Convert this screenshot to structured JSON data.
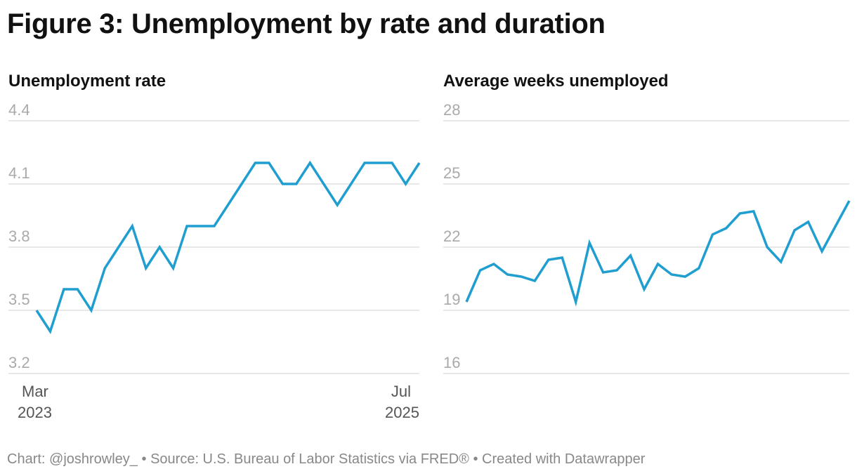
{
  "title": "Figure 3: Unemployment by rate and duration",
  "footer": {
    "chart_credit": "Chart: @joshrowley_",
    "separator_1": "•",
    "source": "Source: U.S. Bureau of Labor Statistics via FRED®",
    "separator_2": "•",
    "created_with": "Created with Datawrapper"
  },
  "colors": {
    "line": "#1f9ecf",
    "grid": "#e0e0e0",
    "tick": "#aaaaaa",
    "text": "#111111",
    "xtick": "#555555"
  },
  "chart_data": [
    {
      "type": "line",
      "title": "Unemployment rate",
      "x": [
        "Mar 2023",
        "Apr 2023",
        "May 2023",
        "Jun 2023",
        "Jul 2023",
        "Aug 2023",
        "Sep 2023",
        "Oct 2023",
        "Nov 2023",
        "Dec 2023",
        "Jan 2024",
        "Feb 2024",
        "Mar 2024",
        "Apr 2024",
        "May 2024",
        "Jun 2024",
        "Jul 2024",
        "Aug 2024",
        "Sep 2024",
        "Oct 2024",
        "Nov 2024",
        "Dec 2024",
        "Jan 2025",
        "Feb 2025",
        "Mar 2025",
        "Apr 2025",
        "May 2025",
        "Jun 2025",
        "Jul 2025"
      ],
      "series": [
        {
          "name": "Unemployment rate",
          "values": [
            3.5,
            3.4,
            3.6,
            3.6,
            3.5,
            3.7,
            3.8,
            3.9,
            3.7,
            3.8,
            3.7,
            3.9,
            3.9,
            3.9,
            4.0,
            4.1,
            4.2,
            4.2,
            4.1,
            4.1,
            4.2,
            4.1,
            4.0,
            4.1,
            4.2,
            4.2,
            4.2,
            4.1,
            4.2
          ]
        }
      ],
      "ylim": [
        3.2,
        4.4
      ],
      "yticks": [
        4.4,
        4.1,
        3.8,
        3.5,
        3.2
      ],
      "ytick_labels": [
        "4.4",
        "4.1",
        "3.8",
        "3.5",
        "3.2"
      ],
      "xtick_labels": [
        {
          "month": "Mar",
          "year": "2023",
          "align": "start"
        },
        {
          "month": "Jul",
          "year": "2025",
          "align": "end"
        }
      ],
      "xlabel": "",
      "ylabel": "",
      "grid": true
    },
    {
      "type": "line",
      "title": "Average weeks unemployed",
      "x": [
        "Mar 2023",
        "Apr 2023",
        "May 2023",
        "Jun 2023",
        "Jul 2023",
        "Aug 2023",
        "Sep 2023",
        "Oct 2023",
        "Nov 2023",
        "Dec 2023",
        "Jan 2024",
        "Feb 2024",
        "Mar 2024",
        "Apr 2024",
        "May 2024",
        "Jun 2024",
        "Jul 2024",
        "Aug 2024",
        "Sep 2024",
        "Oct 2024",
        "Nov 2024",
        "Dec 2024",
        "Jan 2025",
        "Feb 2025",
        "Mar 2025",
        "Apr 2025",
        "May 2025",
        "Jun 2025",
        "Jul 2025"
      ],
      "series": [
        {
          "name": "Average weeks unemployed",
          "values": [
            19.4,
            20.9,
            21.2,
            20.7,
            20.6,
            20.4,
            21.4,
            21.5,
            19.4,
            22.2,
            20.8,
            20.9,
            21.6,
            20.0,
            21.2,
            20.7,
            20.6,
            21.0,
            22.6,
            22.9,
            23.6,
            23.7,
            22.0,
            21.3,
            22.8,
            23.2,
            21.8,
            23.0,
            24.2
          ]
        }
      ],
      "ylim": [
        16,
        28
      ],
      "yticks": [
        28,
        25,
        22,
        19,
        16
      ],
      "ytick_labels": [
        "28",
        "25",
        "22",
        "19",
        "16"
      ],
      "xtick_labels": [],
      "xlabel": "",
      "ylabel": "",
      "grid": true
    }
  ]
}
